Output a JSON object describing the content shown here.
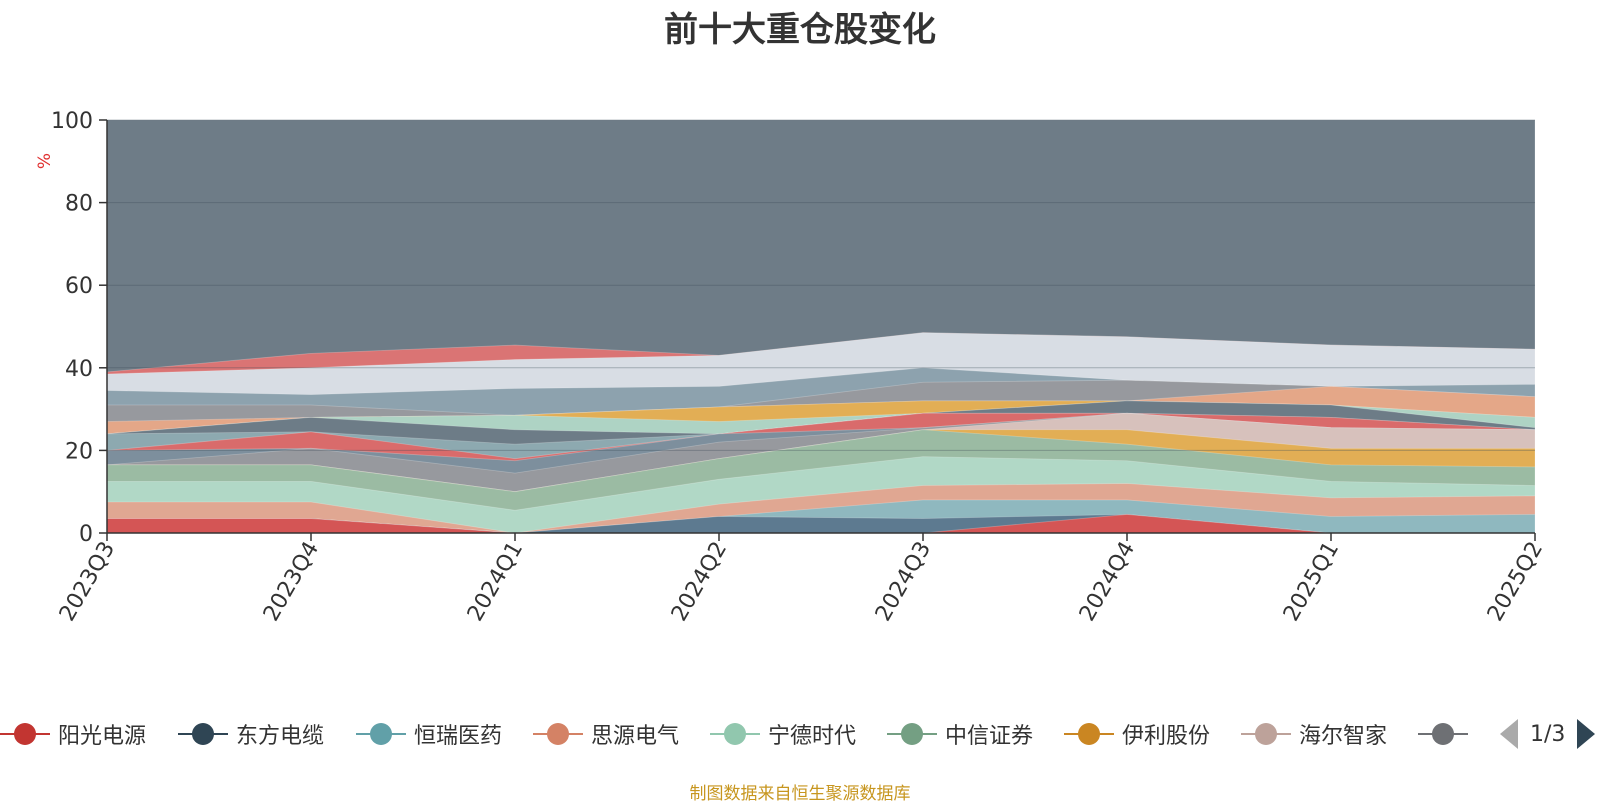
{
  "title": "前十大重仓股变化",
  "source_note": "制图数据来自恒生聚源数据库",
  "legend_pager": "1/3",
  "chart_data": {
    "type": "area",
    "title": "前十大重仓股变化",
    "ylabel": "%",
    "xlabel": "",
    "ylim": [
      0,
      100
    ],
    "yticks": [
      0,
      20,
      40,
      60,
      80,
      100
    ],
    "grid": true,
    "legend_position": "bottom",
    "categories": [
      "2023Q3",
      "2023Q4",
      "2024Q1",
      "2024Q2",
      "2024Q3",
      "2024Q4",
      "2025Q1",
      "2025Q2"
    ],
    "layers": [
      {
        "values": [
          3.5,
          3.5,
          0,
          0,
          0,
          4.5,
          0,
          0
        ],
        "color": "#d45555"
      },
      {
        "values": [
          3.5,
          3.5,
          0,
          4,
          3.5,
          4.5,
          0,
          0
        ],
        "color": "#5d7a90"
      },
      {
        "values": [
          3.5,
          3.5,
          0,
          4,
          8,
          8,
          4,
          4.5
        ],
        "color": "#8fb8bf"
      },
      {
        "values": [
          7.5,
          7.5,
          0,
          7,
          11.5,
          12,
          8.5,
          9
        ],
        "color": "#e0a792"
      },
      {
        "values": [
          12.5,
          12.5,
          5.5,
          13,
          18.5,
          17.5,
          12.5,
          11.5
        ],
        "color": "#b1d8c6"
      },
      {
        "values": [
          16.5,
          16.5,
          10,
          18,
          25,
          21.5,
          16.5,
          16
        ],
        "color": "#9bbba3"
      },
      {
        "values": [
          16.5,
          16.5,
          10,
          18,
          25,
          25,
          20.5,
          20.5
        ],
        "color": "#e2ae55"
      },
      {
        "values": [
          16.5,
          16.5,
          10,
          18,
          25,
          29,
          25.5,
          25
        ],
        "color": "#d7c1bc"
      },
      {
        "values": [
          16.5,
          20.5,
          14.5,
          22,
          25.5,
          29,
          25.5,
          25
        ],
        "color": "#97999e"
      },
      {
        "values": [
          20,
          20.5,
          17.5,
          24,
          25.5,
          29,
          25.5,
          25
        ],
        "color": "#7d8f9d"
      },
      {
        "values": [
          20,
          24.5,
          18,
          24,
          29,
          29,
          28,
          25
        ],
        "color": "#d96b6b"
      },
      {
        "values": [
          24,
          24.5,
          21.5,
          24,
          29,
          29,
          28,
          25
        ],
        "color": "#8da9b0"
      },
      {
        "values": [
          24,
          28,
          25,
          24,
          29,
          32,
          31,
          25.5
        ],
        "color": "#6d7c87"
      },
      {
        "values": [
          24,
          28,
          28.5,
          27,
          29,
          32,
          31,
          28
        ],
        "color": "#aed3c4"
      },
      {
        "values": [
          24,
          28,
          28.5,
          30.5,
          32,
          32,
          31,
          28
        ],
        "color": "#e2ae55"
      },
      {
        "values": [
          27,
          28,
          28.5,
          30.5,
          32,
          32,
          35.5,
          33
        ],
        "color": "#e4a788"
      },
      {
        "values": [
          31,
          31,
          28.5,
          30.5,
          36.5,
          37,
          35.5,
          33
        ],
        "color": "#97999e"
      },
      {
        "values": [
          34.5,
          33.5,
          35,
          35.5,
          40,
          37,
          35.5,
          36
        ],
        "color": "#8da2ae"
      },
      {
        "values": [
          38.5,
          40,
          42,
          43,
          48.5,
          47.5,
          45.5,
          44.5
        ],
        "color": "#d8dde4"
      },
      {
        "values": [
          39,
          43.5,
          45.5,
          43,
          48.5,
          47.5,
          45.5,
          44.5
        ],
        "color": "#da7474"
      },
      {
        "values": [
          100,
          100,
          100,
          100,
          100,
          100,
          100,
          100
        ],
        "color": "#6e7c87"
      }
    ],
    "series": [
      {
        "name": "阳光电源",
        "color": "#c23531"
      },
      {
        "name": "东方电缆",
        "color": "#2f4554"
      },
      {
        "name": "恒瑞医药",
        "color": "#61a0a8"
      },
      {
        "name": "思源电气",
        "color": "#d48265"
      },
      {
        "name": "宁德时代",
        "color": "#91c7ae"
      },
      {
        "name": "中信证券",
        "color": "#749f83"
      },
      {
        "name": "伊利股份",
        "color": "#ca8622"
      },
      {
        "name": "海尔智家",
        "color": "#bda29a"
      },
      {
        "name": "",
        "color": "#6e7074"
      }
    ]
  }
}
